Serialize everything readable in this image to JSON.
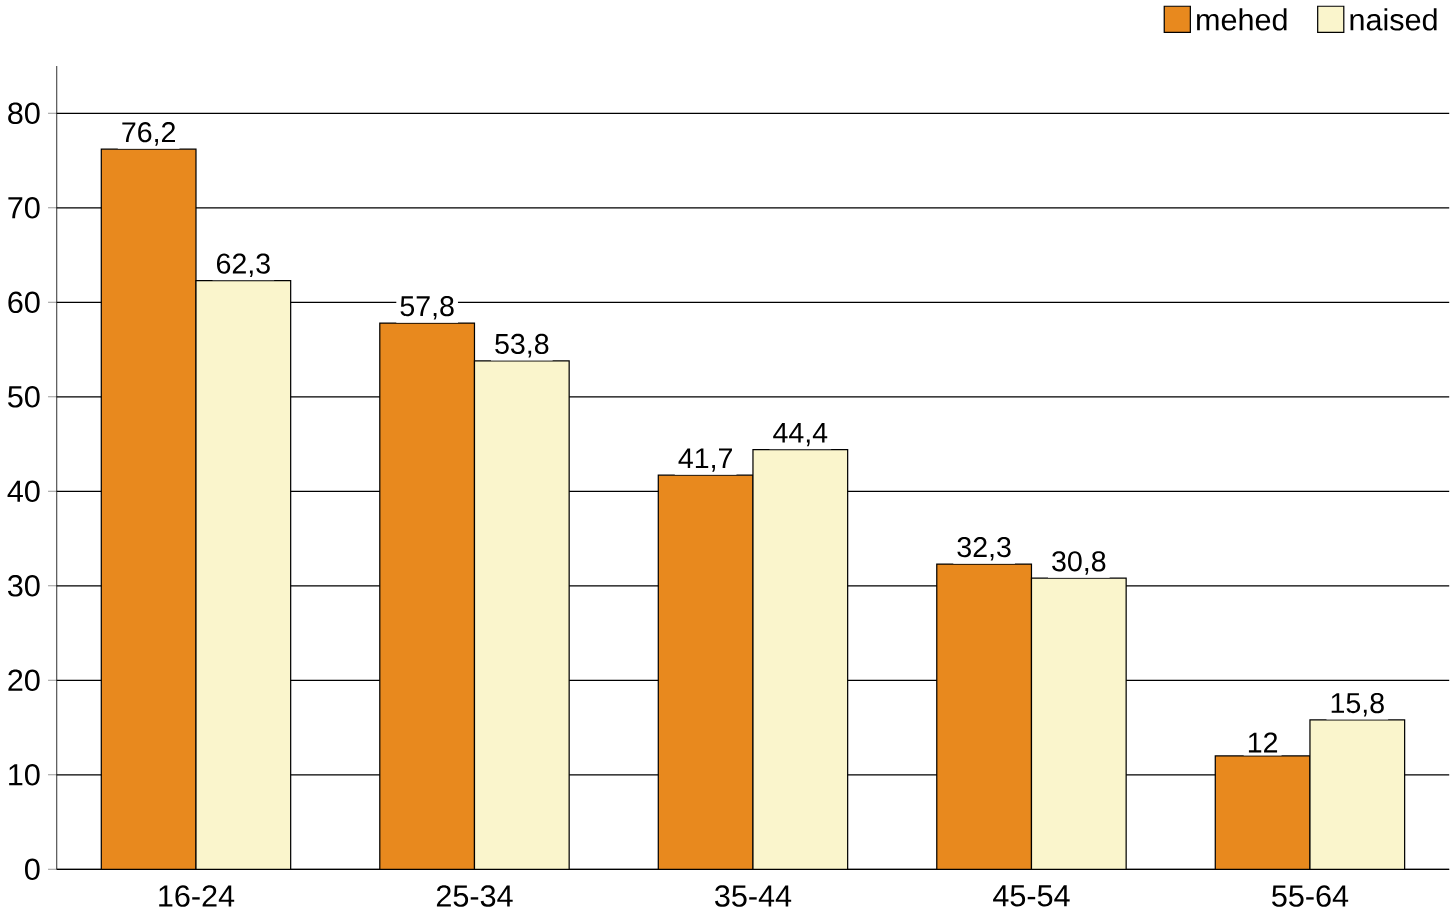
{
  "chart_data": {
    "type": "bar",
    "categories": [
      "16-24",
      "25-34",
      "35-44",
      "45-54",
      "55-64"
    ],
    "series": [
      {
        "name": "mehed",
        "color": "#e8891e",
        "values": [
          76.2,
          57.8,
          41.7,
          32.3,
          12
        ],
        "value_labels": [
          "76,2",
          "57,8",
          "41,7",
          "32,3",
          "12"
        ]
      },
      {
        "name": "naised",
        "color": "#faf5cc",
        "values": [
          62.3,
          53.8,
          44.4,
          30.8,
          15.8
        ],
        "value_labels": [
          "62,3",
          "53,8",
          "44,4",
          "30,8",
          "15,8"
        ]
      }
    ],
    "ylim": [
      0,
      85
    ],
    "yticks": [
      0,
      10,
      20,
      30,
      40,
      50,
      60,
      70,
      80
    ],
    "grid": "y",
    "legend": "top right"
  }
}
